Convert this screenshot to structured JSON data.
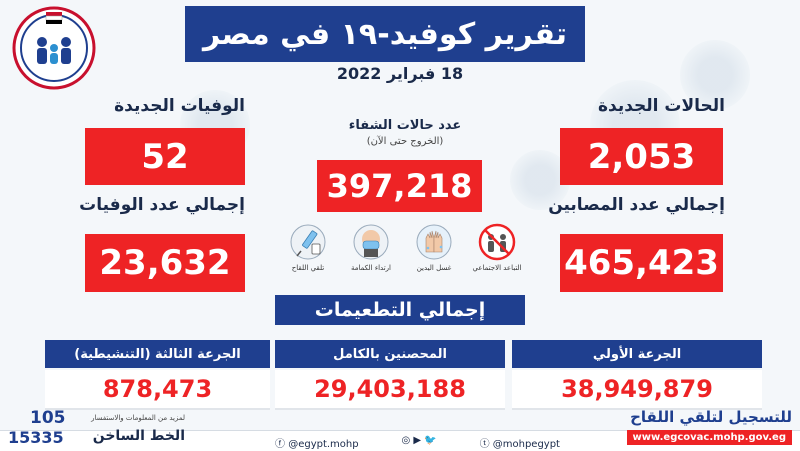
{
  "title": "تقرير كوفيد-١٩ في مصر",
  "date": "18 فبراير 2022",
  "logo_text": "وزارة الصحة والسكان",
  "new_cases": {
    "label": "الحالات الجديدة",
    "value": "2,053"
  },
  "total_cases": {
    "label": "إجمالي عدد المصابين",
    "value": "465,423"
  },
  "new_deaths": {
    "label": "الوفيات الجديدة",
    "value": "52"
  },
  "total_deaths": {
    "label": "إجمالي عدد الوفيات",
    "value": "23,632"
  },
  "recoveries": {
    "label": "عدد حالات الشفاء",
    "sublabel": "(الخروج حتى الآن)",
    "value": "397,218"
  },
  "precautions": [
    {
      "icon": "social-distancing-icon",
      "label": "التباعد الاجتماعي"
    },
    {
      "icon": "hand-washing-icon",
      "label": "غسل اليدين"
    },
    {
      "icon": "face-mask-icon",
      "label": "ارتداء الكمامة"
    },
    {
      "icon": "vaccine-syringe-icon",
      "label": "تلقي اللقاح"
    }
  ],
  "vaccinations": {
    "title": "إجمالي التطعيمات",
    "first_dose": {
      "label": "الجرعة الأولي",
      "value": "38,949,879"
    },
    "fully_vaccinated": {
      "label": "المحصنين بالكامل",
      "value": "29,403,188"
    },
    "booster": {
      "label": "الجرعة الثالثة (التنشيطية)",
      "value": "878,473"
    }
  },
  "footer": {
    "hotline_info": "لمزيد من المعلومات والاستفسار",
    "hotline_label": "الخط الساخن",
    "hotline_numbers": [
      "105",
      "15335"
    ],
    "social": [
      "@egypt.mohp",
      "@mohpegypt"
    ],
    "register_label": "للتسجيل لتلقي اللقاح",
    "register_url": "www.egcovac.mohp.gov.eg"
  },
  "colors": {
    "navy": "#1f3f8f",
    "red": "#ee2325",
    "background": "#f4f7fa"
  }
}
